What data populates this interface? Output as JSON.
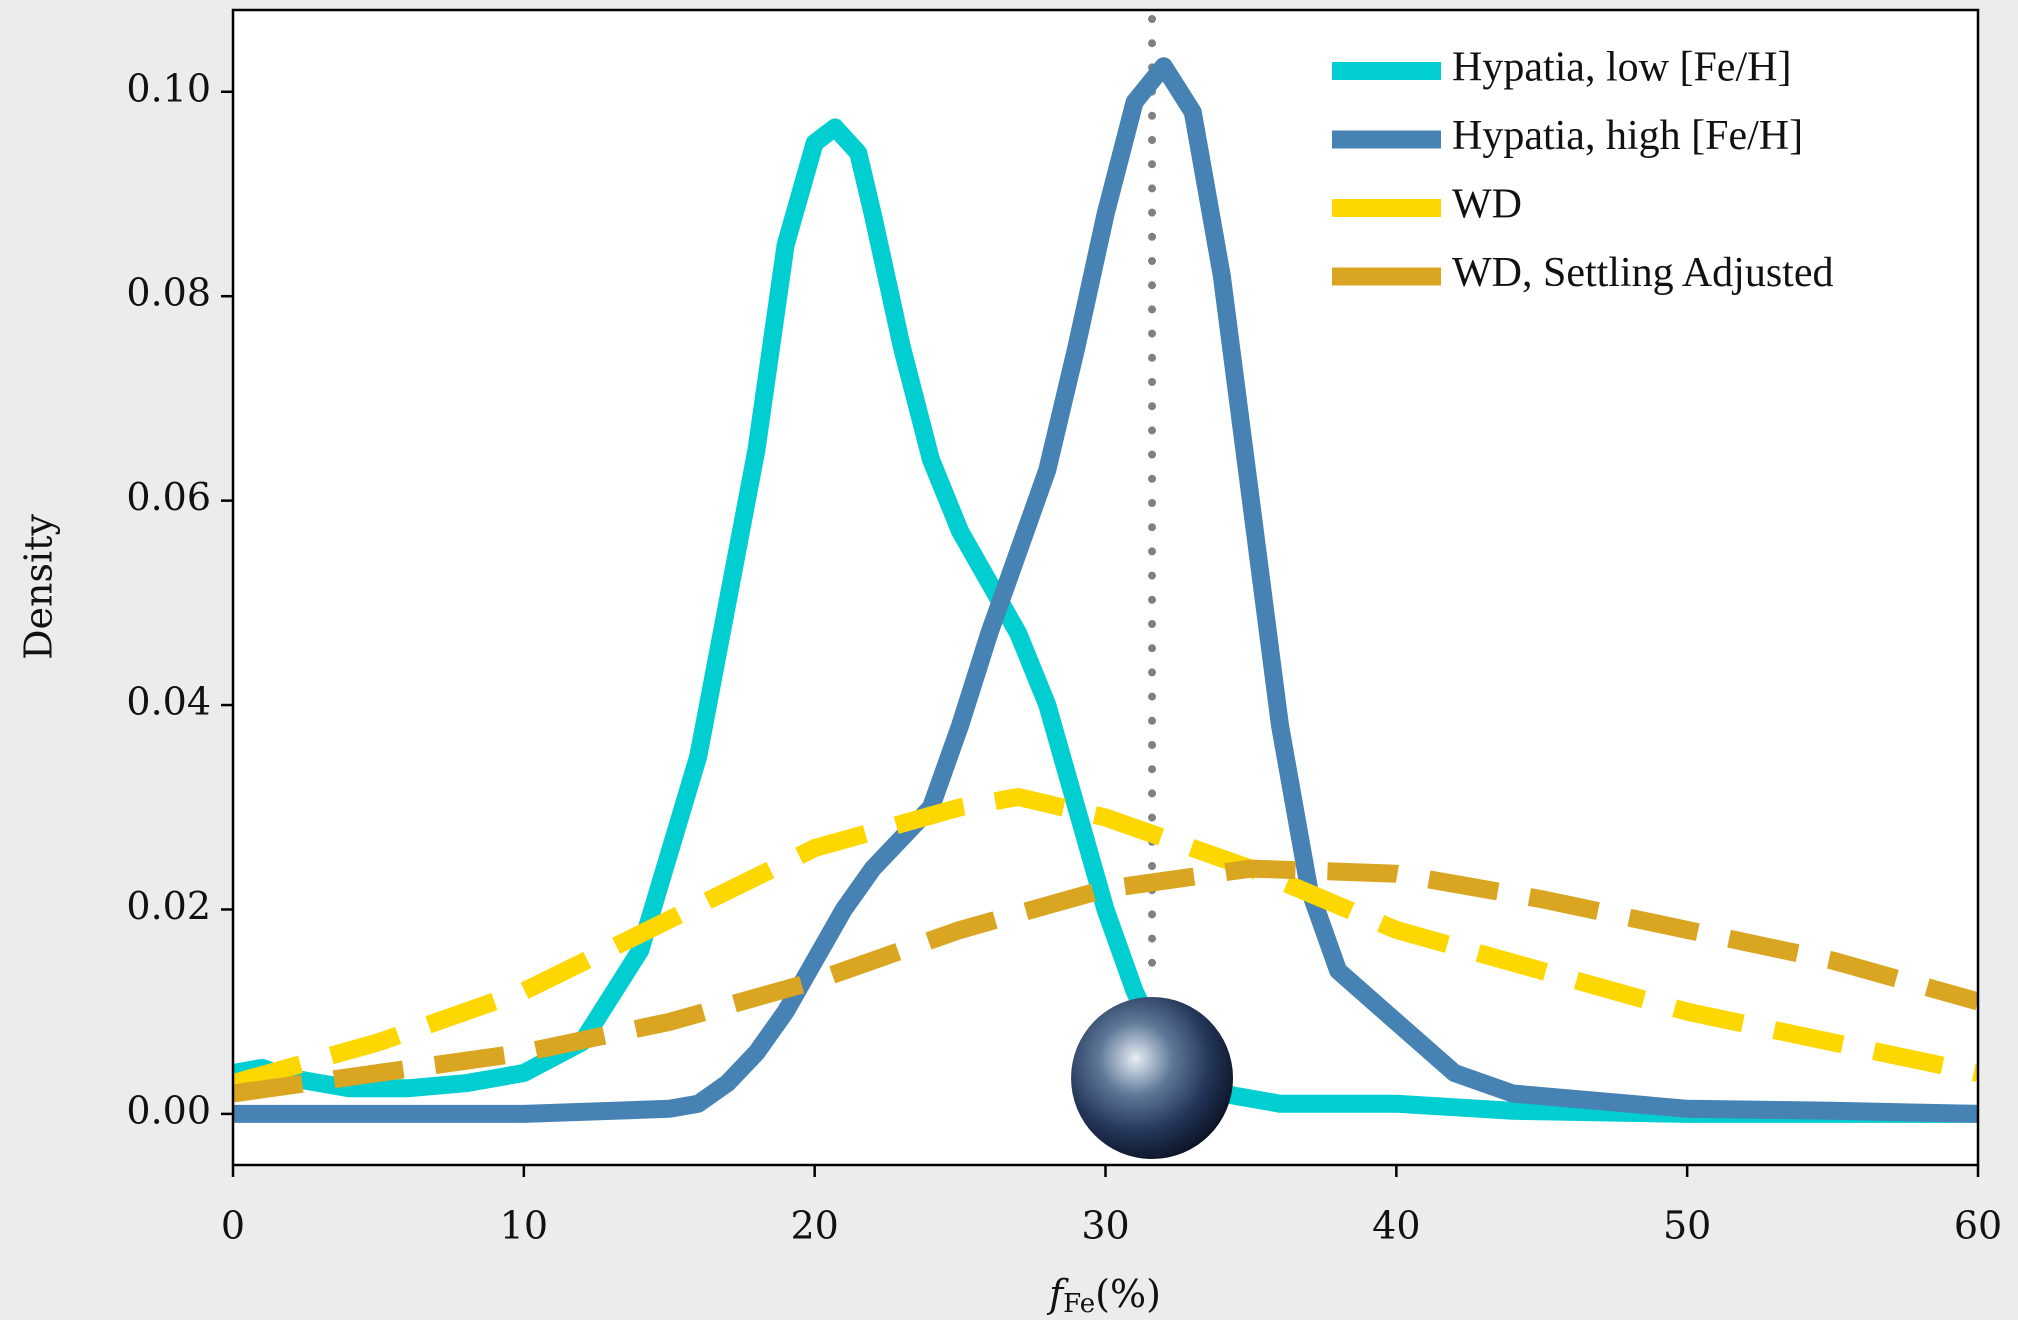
{
  "chart_data": {
    "type": "line",
    "x_label": {
      "symbol": "f",
      "subscript": "Fe",
      "unit": "(%)"
    },
    "y_label": "Density",
    "xlim": [
      0,
      60
    ],
    "ylim": [
      -0.005,
      0.108
    ],
    "xticks": [
      0,
      10,
      20,
      30,
      40,
      50,
      60
    ],
    "yticks": [
      {
        "value": 0,
        "label": "0.00"
      },
      {
        "value": 0.02,
        "label": "0.02"
      },
      {
        "value": 0.04,
        "label": "0.04"
      },
      {
        "value": 0.06,
        "label": "0.06"
      },
      {
        "value": 0.08,
        "label": "0.08"
      },
      {
        "value": 0.1,
        "label": "0.10"
      }
    ],
    "legend": "upper right",
    "vline_x": 31.6,
    "series": [
      {
        "name": "Hypatia, low [Fe/H]",
        "color": "#00ced1",
        "dashed": false,
        "x": [
          0,
          1,
          2,
          4,
          6,
          8,
          10,
          12,
          14,
          16,
          18,
          19,
          20,
          20.7,
          21.5,
          22,
          23,
          24,
          25,
          26,
          27,
          28,
          29,
          30,
          31,
          32,
          33,
          34,
          36,
          40,
          44,
          50,
          60
        ],
        "values": [
          0.004,
          0.0045,
          0.0035,
          0.0025,
          0.0025,
          0.003,
          0.004,
          0.007,
          0.016,
          0.035,
          0.065,
          0.085,
          0.095,
          0.0965,
          0.094,
          0.088,
          0.075,
          0.064,
          0.057,
          0.052,
          0.047,
          0.04,
          0.03,
          0.02,
          0.012,
          0.006,
          0.003,
          0.002,
          0.001,
          0.001,
          0.0003,
          0,
          0
        ]
      },
      {
        "name": "Hypatia, high [Fe/H]",
        "color": "#4682b4",
        "dashed": false,
        "x": [
          0,
          5,
          10,
          15,
          16,
          17,
          18,
          19,
          20,
          21,
          22,
          24,
          25,
          26,
          27,
          28,
          29,
          30,
          31,
          32,
          33,
          34,
          35,
          36,
          37,
          38,
          40,
          42,
          44,
          46,
          50,
          55,
          60
        ],
        "values": [
          0,
          0,
          0,
          0.0005,
          0.001,
          0.003,
          0.006,
          0.01,
          0.015,
          0.02,
          0.024,
          0.03,
          0.038,
          0.047,
          0.055,
          0.063,
          0.075,
          0.088,
          0.099,
          0.1025,
          0.098,
          0.082,
          0.06,
          0.038,
          0.022,
          0.014,
          0.009,
          0.004,
          0.002,
          0.0015,
          0.0005,
          0.0003,
          0
        ]
      },
      {
        "name": "WD",
        "color": "#ffd700",
        "dashed": true,
        "x": [
          0,
          5,
          10,
          15,
          20,
          25,
          27,
          30,
          35,
          40,
          45,
          50,
          55,
          60
        ],
        "values": [
          0.003,
          0.007,
          0.012,
          0.019,
          0.026,
          0.03,
          0.031,
          0.029,
          0.024,
          0.018,
          0.014,
          0.01,
          0.007,
          0.004
        ]
      },
      {
        "name": "WD, Settling Adjusted",
        "color": "#daa520",
        "dashed": true,
        "x": [
          0,
          5,
          10,
          15,
          20,
          25,
          30,
          35,
          40,
          45,
          50,
          55,
          60
        ],
        "values": [
          0.002,
          0.004,
          0.006,
          0.009,
          0.013,
          0.018,
          0.022,
          0.024,
          0.0235,
          0.021,
          0.018,
          0.015,
          0.011
        ]
      }
    ]
  }
}
